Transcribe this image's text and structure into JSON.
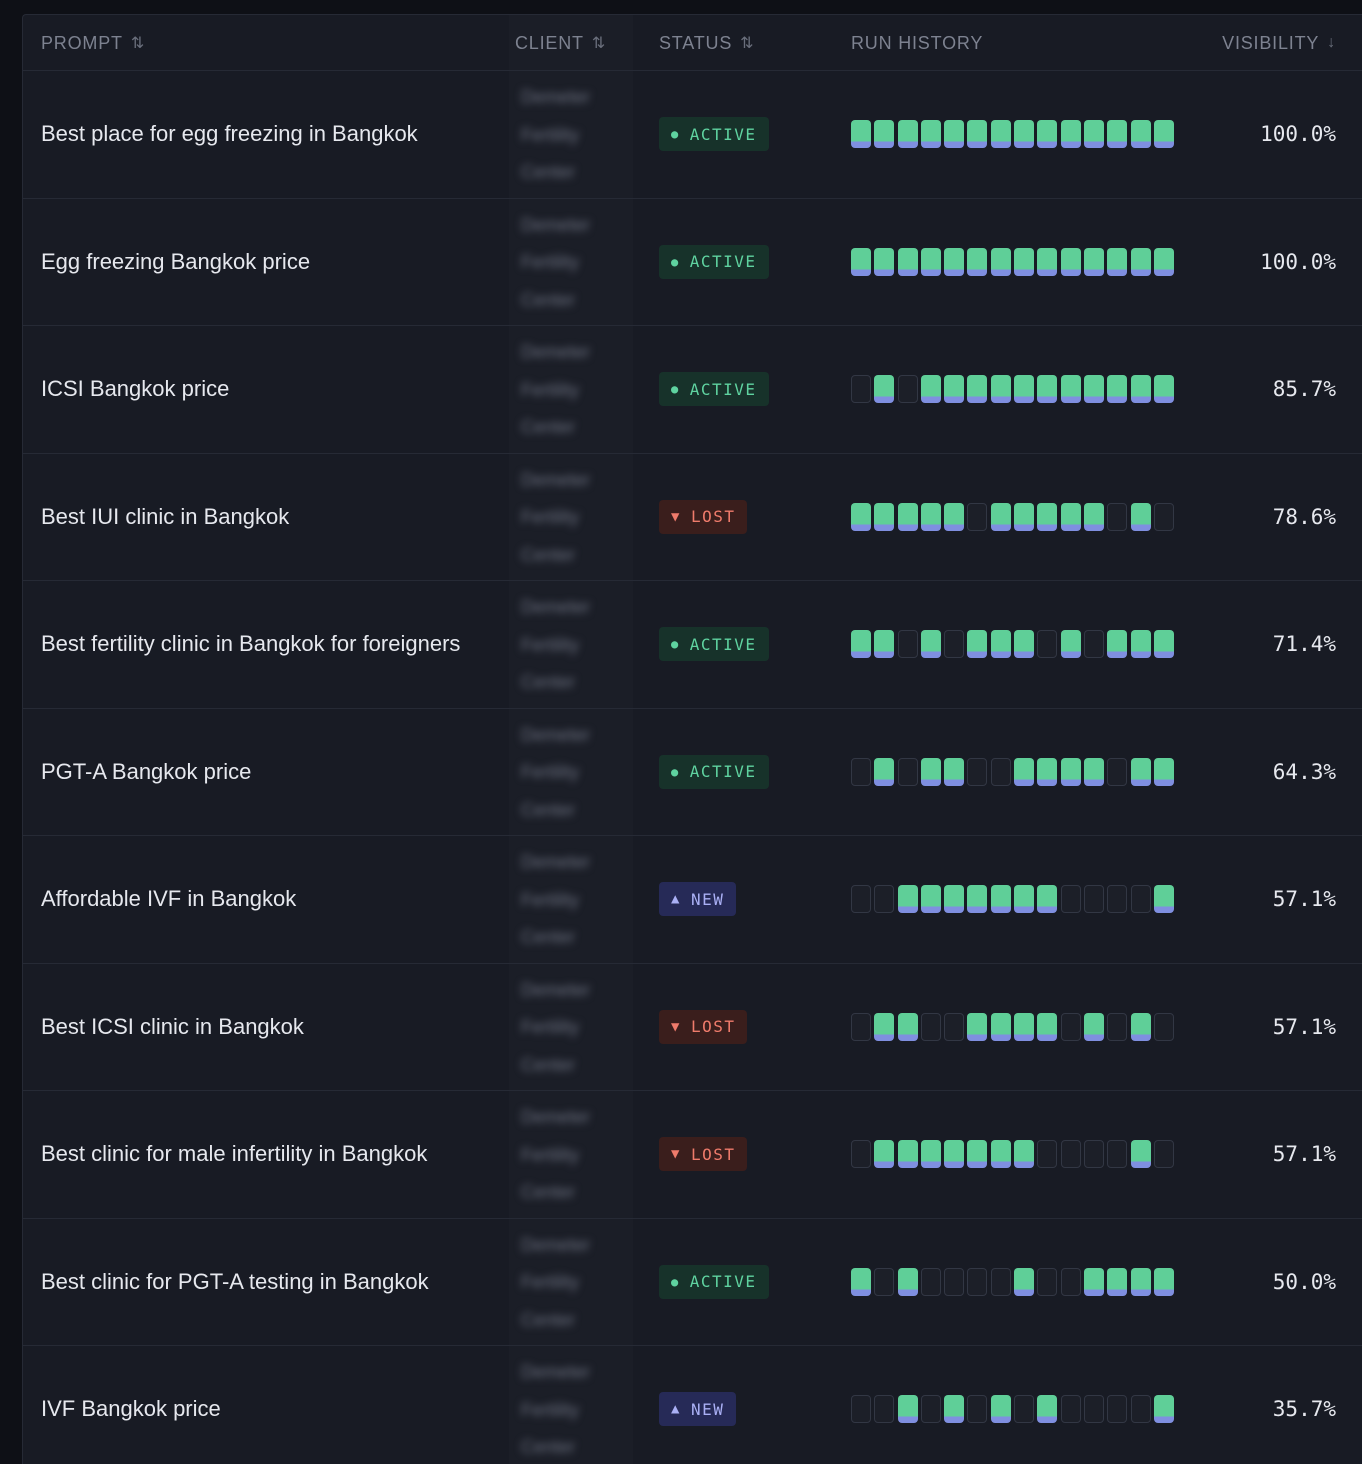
{
  "header": {
    "prompt": "PROMPT",
    "client": "CLIENT",
    "status": "STATUS",
    "run_history": "RUN HISTORY",
    "visibility": "VISIBILITY",
    "sort_icon": "⇅",
    "sort_desc_icon": "↓"
  },
  "colors": {
    "active": "#5fd3a0",
    "lost": "#ef7b6b",
    "new": "#aab0f5",
    "run_on": "#5fcf98",
    "run_on_base": "#7f8fe0"
  },
  "rows": [
    {
      "prompt": "Best place for egg freezing in Bangkok",
      "client": [
        "Demeter",
        "Fertility",
        "Center"
      ],
      "status": "ACTIVE",
      "status_type": "active",
      "runs": [
        1,
        1,
        1,
        1,
        1,
        1,
        1,
        1,
        1,
        1,
        1,
        1,
        1,
        1
      ],
      "visibility": "100.0%"
    },
    {
      "prompt": "Egg freezing Bangkok price",
      "client": [
        "Demeter",
        "Fertility",
        "Center"
      ],
      "status": "ACTIVE",
      "status_type": "active",
      "runs": [
        1,
        1,
        1,
        1,
        1,
        1,
        1,
        1,
        1,
        1,
        1,
        1,
        1,
        1
      ],
      "visibility": "100.0%"
    },
    {
      "prompt": "ICSI Bangkok price",
      "client": [
        "Demeter",
        "Fertility",
        "Center"
      ],
      "status": "ACTIVE",
      "status_type": "active",
      "runs": [
        0,
        1,
        0,
        1,
        1,
        1,
        1,
        1,
        1,
        1,
        1,
        1,
        1,
        1
      ],
      "visibility": "85.7%"
    },
    {
      "prompt": "Best IUI clinic in Bangkok",
      "client": [
        "Demeter",
        "Fertility",
        "Center"
      ],
      "status": "LOST",
      "status_type": "lost",
      "runs": [
        1,
        1,
        1,
        1,
        1,
        0,
        1,
        1,
        1,
        1,
        1,
        0,
        1,
        0
      ],
      "visibility": "78.6%"
    },
    {
      "prompt": "Best fertility clinic in Bangkok for foreigners",
      "client": [
        "Demeter",
        "Fertility",
        "Center"
      ],
      "status": "ACTIVE",
      "status_type": "active",
      "runs": [
        1,
        1,
        0,
        1,
        0,
        1,
        1,
        1,
        0,
        1,
        0,
        1,
        1,
        1
      ],
      "visibility": "71.4%"
    },
    {
      "prompt": "PGT-A Bangkok price",
      "client": [
        "Demeter",
        "Fertility",
        "Center"
      ],
      "status": "ACTIVE",
      "status_type": "active",
      "runs": [
        0,
        1,
        0,
        1,
        1,
        0,
        0,
        1,
        1,
        1,
        1,
        0,
        1,
        1
      ],
      "visibility": "64.3%"
    },
    {
      "prompt": "Affordable IVF in Bangkok",
      "client": [
        "Demeter",
        "Fertility",
        "Center"
      ],
      "status": "NEW",
      "status_type": "new",
      "runs": [
        0,
        0,
        1,
        1,
        1,
        1,
        1,
        1,
        1,
        0,
        0,
        0,
        0,
        1
      ],
      "visibility": "57.1%"
    },
    {
      "prompt": "Best ICSI clinic in Bangkok",
      "client": [
        "Demeter",
        "Fertility",
        "Center"
      ],
      "status": "LOST",
      "status_type": "lost",
      "runs": [
        0,
        1,
        1,
        0,
        0,
        1,
        1,
        1,
        1,
        0,
        1,
        0,
        1,
        0
      ],
      "visibility": "57.1%"
    },
    {
      "prompt": "Best clinic for male infertility in Bangkok",
      "client": [
        "Demeter",
        "Fertility",
        "Center"
      ],
      "status": "LOST",
      "status_type": "lost",
      "runs": [
        0,
        1,
        1,
        1,
        1,
        1,
        1,
        1,
        0,
        0,
        0,
        0,
        1,
        0
      ],
      "visibility": "57.1%"
    },
    {
      "prompt": "Best clinic for PGT-A testing in Bangkok",
      "client": [
        "Demeter",
        "Fertility",
        "Center"
      ],
      "status": "ACTIVE",
      "status_type": "active",
      "runs": [
        1,
        0,
        1,
        0,
        0,
        0,
        0,
        1,
        0,
        0,
        1,
        1,
        1,
        1
      ],
      "visibility": "50.0%"
    },
    {
      "prompt": "IVF Bangkok price",
      "client": [
        "Demeter",
        "Fertility",
        "Center"
      ],
      "status": "NEW",
      "status_type": "new",
      "runs": [
        0,
        0,
        1,
        0,
        1,
        0,
        1,
        0,
        1,
        0,
        0,
        0,
        0,
        1
      ],
      "visibility": "35.7%"
    }
  ]
}
